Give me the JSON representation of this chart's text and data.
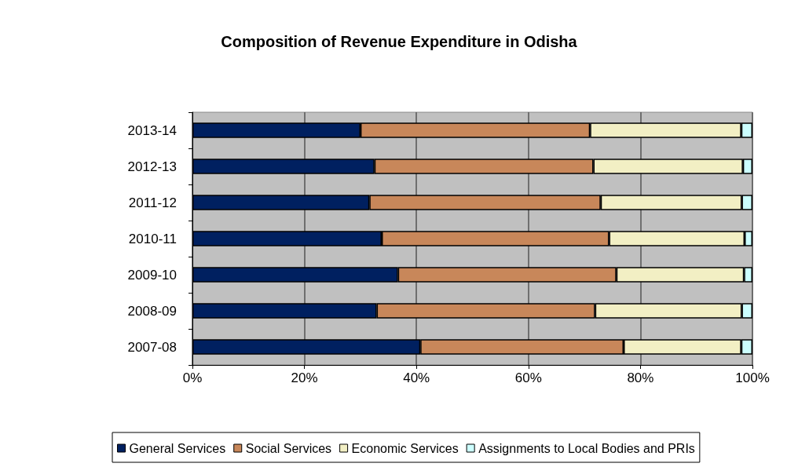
{
  "chart_data": {
    "type": "bar",
    "title": "Composition of Revenue Expenditure in Odisha",
    "orientation": "horizontal",
    "stacked": true,
    "categories": [
      "2013-14",
      "2012-13",
      "2011-12",
      "2010-11",
      "2009-10",
      "2008-09",
      "2007-08"
    ],
    "series": [
      {
        "name": "General Services",
        "color": "#002060",
        "values": [
          30.0,
          32.5,
          31.6,
          33.8,
          36.7,
          32.9,
          40.7
        ]
      },
      {
        "name": "Social Services",
        "color": "#c8875a",
        "values": [
          41.0,
          39.1,
          41.3,
          40.6,
          39.0,
          39.0,
          36.3
        ]
      },
      {
        "name": "Economic Services",
        "color": "#f2efc4",
        "values": [
          27.0,
          26.7,
          25.2,
          24.2,
          22.8,
          26.2,
          21.0
        ]
      },
      {
        "name": "Assignments to Local Bodies and PRIs",
        "color": "#ccffff",
        "values": [
          2.0,
          1.7,
          1.9,
          1.4,
          1.5,
          1.9,
          2.0
        ]
      }
    ],
    "xlim": [
      0,
      100
    ],
    "xticks": [
      {
        "value": 0,
        "label": "0%"
      },
      {
        "value": 20,
        "label": "20%"
      },
      {
        "value": 40,
        "label": "40%"
      },
      {
        "value": 60,
        "label": "60%"
      },
      {
        "value": 80,
        "label": "80%"
      },
      {
        "value": 100,
        "label": "100%"
      }
    ],
    "grid": "x",
    "legend": "bottom"
  }
}
